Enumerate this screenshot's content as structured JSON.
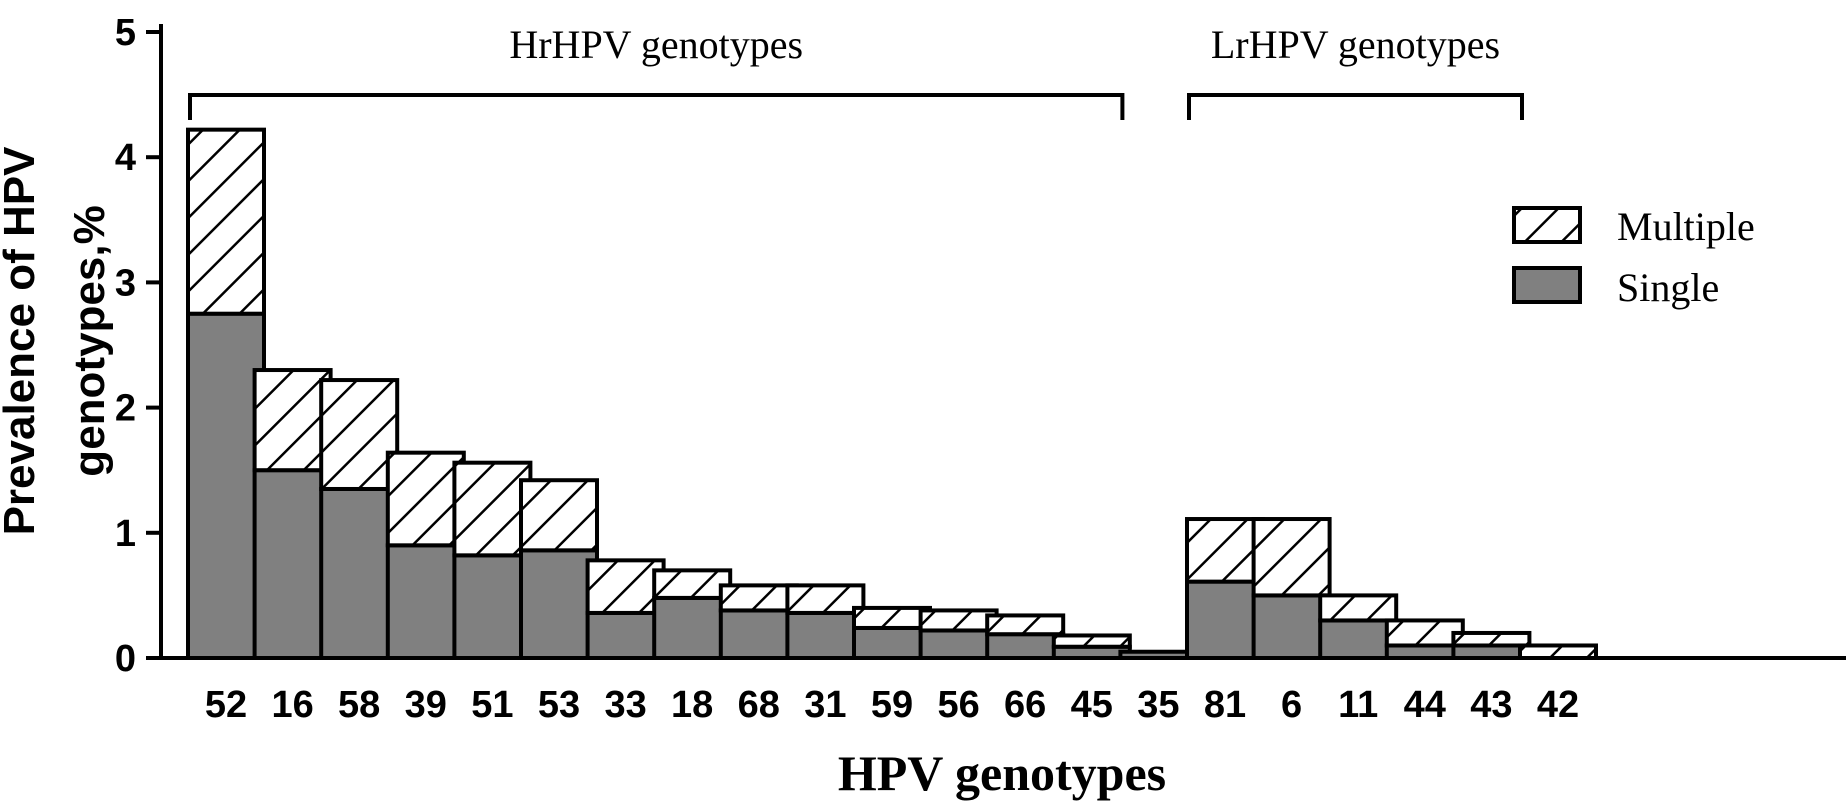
{
  "chart_data": {
    "type": "bar",
    "stacked": true,
    "title": "",
    "xlabel": "HPV genotypes",
    "ylabel_lines": [
      "Prevalence of HPV",
      "genotypes,%"
    ],
    "ylim": [
      0,
      5
    ],
    "yticks": [
      "0",
      "1",
      "2",
      "3",
      "4",
      "5"
    ],
    "categories": [
      "52",
      "16",
      "58",
      "39",
      "51",
      "53",
      "33",
      "18",
      "68",
      "31",
      "59",
      "56",
      "66",
      "45",
      "35",
      "81",
      "6",
      "11",
      "44",
      "43",
      "42"
    ],
    "series": [
      {
        "name": "Single",
        "color": "#808080",
        "values": [
          2.75,
          1.5,
          1.35,
          0.9,
          0.82,
          0.86,
          0.36,
          0.48,
          0.38,
          0.36,
          0.24,
          0.22,
          0.19,
          0.09,
          0.05,
          0.61,
          0.5,
          0.3,
          0.1,
          0.1,
          0.0
        ]
      },
      {
        "name": "Multiple",
        "pattern": "diagonal-hatch",
        "values": [
          1.47,
          0.8,
          0.87,
          0.74,
          0.74,
          0.56,
          0.42,
          0.22,
          0.2,
          0.22,
          0.16,
          0.16,
          0.15,
          0.09,
          0.0,
          0.5,
          0.61,
          0.2,
          0.2,
          0.1,
          0.1
        ]
      }
    ],
    "groups": [
      {
        "label": "HrHPV genotypes",
        "from": "52",
        "to": "35"
      },
      {
        "label": "LrHPV genotypes",
        "from": "81",
        "to": "42"
      }
    ],
    "legend": {
      "position": "right",
      "order": [
        "Multiple",
        "Single"
      ]
    },
    "grid": false
  }
}
